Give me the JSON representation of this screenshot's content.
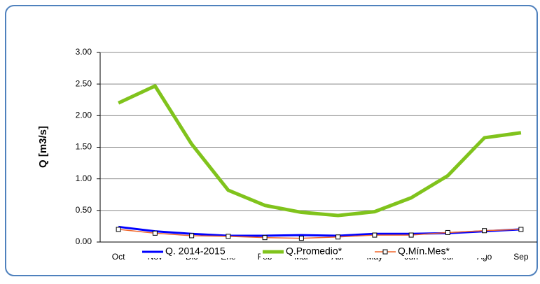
{
  "chart_data": {
    "type": "line",
    "ylabel": "Q [m3/s]",
    "categories": [
      "Oct",
      "Nov",
      "Dic",
      "Ene",
      "Feb",
      "Mar",
      "Abr",
      "May",
      "Jun",
      "Jul",
      "Ago",
      "Sep"
    ],
    "series": [
      {
        "name": "Q. 2014-2015",
        "color": "#0000ff",
        "values": [
          0.24,
          0.17,
          0.13,
          0.1,
          0.1,
          0.11,
          0.1,
          0.13,
          0.13,
          0.14,
          0.17,
          0.2
        ]
      },
      {
        "name": "Q.Promedio*",
        "color": "#80c31c",
        "values": [
          2.2,
          2.47,
          1.55,
          0.82,
          0.58,
          0.47,
          0.42,
          0.48,
          0.7,
          1.05,
          1.65,
          1.73
        ]
      },
      {
        "name": "Q.Mín.Mes*",
        "color": "#f0662b",
        "values": [
          0.2,
          0.14,
          0.1,
          0.09,
          0.07,
          0.06,
          0.08,
          0.11,
          0.11,
          0.15,
          0.18,
          0.2
        ]
      }
    ],
    "ylim": [
      0,
      3
    ],
    "yticks": [
      {
        "value": 0,
        "label": "0.00"
      },
      {
        "value": 0.5,
        "label": "0.50"
      },
      {
        "value": 1,
        "label": "1.00"
      },
      {
        "value": 1.5,
        "label": "1.50"
      },
      {
        "value": 2,
        "label": "2.00"
      },
      {
        "value": 2.5,
        "label": "2.50"
      },
      {
        "value": 3,
        "label": "3.00"
      }
    ],
    "grid": true
  }
}
